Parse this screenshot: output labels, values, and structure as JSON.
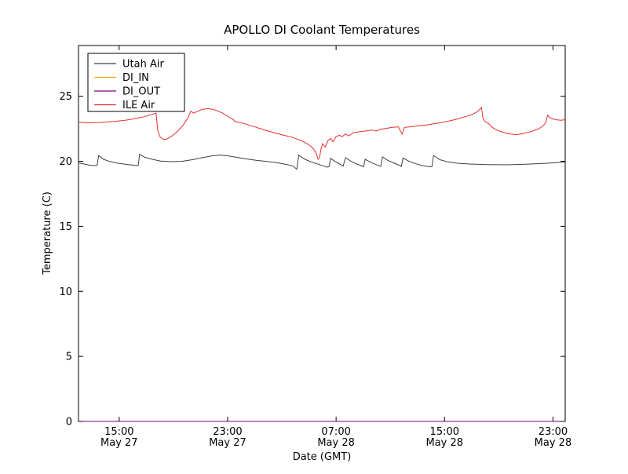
{
  "figure": {
    "title": "APOLLO DI Coolant Temperatures",
    "xlabel": "Date (GMT)",
    "ylabel": "Temperature (C)"
  },
  "chart_data": {
    "type": "line",
    "title": "APOLLO DI Coolant Temperatures",
    "xlabel": "Date (GMT)",
    "ylabel": "Temperature (C)",
    "grid": false,
    "legend_position": "upper left",
    "x_encoding": "hours since May 27 00:00 GMT",
    "xlim": [
      12.0,
      47.9
    ],
    "ylim": [
      0,
      28.9
    ],
    "yticks": [
      0,
      5,
      10,
      15,
      20,
      25
    ],
    "xticks": [
      {
        "t": 15,
        "time": "15:00",
        "date": "May 27"
      },
      {
        "t": 23,
        "time": "23:00",
        "date": "May 27"
      },
      {
        "t": 31,
        "time": "07:00",
        "date": "May 28"
      },
      {
        "t": 39,
        "time": "15:00",
        "date": "May 28"
      },
      {
        "t": 47,
        "time": "23:00",
        "date": "May 28"
      }
    ],
    "series": [
      {
        "name": "Utah Air",
        "color": "#3f3f3f",
        "points": [
          [
            12.0,
            19.88
          ],
          [
            12.35,
            19.8
          ],
          [
            12.75,
            19.72
          ],
          [
            13.15,
            19.66
          ],
          [
            13.38,
            19.7
          ],
          [
            13.49,
            20.45
          ],
          [
            13.85,
            20.15
          ],
          [
            14.3,
            19.98
          ],
          [
            14.9,
            19.85
          ],
          [
            15.45,
            19.77
          ],
          [
            16.05,
            19.7
          ],
          [
            16.4,
            19.66
          ],
          [
            16.51,
            20.55
          ],
          [
            16.9,
            20.3
          ],
          [
            17.45,
            20.15
          ],
          [
            18.05,
            20.02
          ],
          [
            18.85,
            19.97
          ],
          [
            19.65,
            20.0
          ],
          [
            20.4,
            20.12
          ],
          [
            21.15,
            20.28
          ],
          [
            21.85,
            20.42
          ],
          [
            22.4,
            20.48
          ],
          [
            22.9,
            20.44
          ],
          [
            23.6,
            20.32
          ],
          [
            24.3,
            20.2
          ],
          [
            25.1,
            20.08
          ],
          [
            25.9,
            19.99
          ],
          [
            26.7,
            19.88
          ],
          [
            27.4,
            19.75
          ],
          [
            27.85,
            19.62
          ],
          [
            28.1,
            19.38
          ],
          [
            28.25,
            20.47
          ],
          [
            28.7,
            20.15
          ],
          [
            29.15,
            19.95
          ],
          [
            29.6,
            19.8
          ],
          [
            30.05,
            19.65
          ],
          [
            30.35,
            19.55
          ],
          [
            30.48,
            19.58
          ],
          [
            30.6,
            20.22
          ],
          [
            30.95,
            19.97
          ],
          [
            31.3,
            19.77
          ],
          [
            31.52,
            19.62
          ],
          [
            31.7,
            20.28
          ],
          [
            32.1,
            20.0
          ],
          [
            32.5,
            19.8
          ],
          [
            32.85,
            19.67
          ],
          [
            33.03,
            19.58
          ],
          [
            33.14,
            20.15
          ],
          [
            33.55,
            19.92
          ],
          [
            33.95,
            19.75
          ],
          [
            34.3,
            19.6
          ],
          [
            34.42,
            20.33
          ],
          [
            34.85,
            20.05
          ],
          [
            35.3,
            19.85
          ],
          [
            35.7,
            19.68
          ],
          [
            35.81,
            19.6
          ],
          [
            35.93,
            20.25
          ],
          [
            36.35,
            20.02
          ],
          [
            36.8,
            19.83
          ],
          [
            37.4,
            19.66
          ],
          [
            37.95,
            19.57
          ],
          [
            38.08,
            19.6
          ],
          [
            38.19,
            20.45
          ],
          [
            38.65,
            20.12
          ],
          [
            39.25,
            19.95
          ],
          [
            39.95,
            19.85
          ],
          [
            40.85,
            19.79
          ],
          [
            42.1,
            19.75
          ],
          [
            43.6,
            19.73
          ],
          [
            45.0,
            19.77
          ],
          [
            46.3,
            19.84
          ],
          [
            47.25,
            19.9
          ],
          [
            47.9,
            19.94
          ]
        ]
      },
      {
        "name": "DI_IN",
        "color": "#ffa500",
        "points": [
          [
            12.0,
            0
          ],
          [
            47.9,
            0
          ]
        ]
      },
      {
        "name": "DI_OUT",
        "color": "#7d007d",
        "points": [
          [
            12.0,
            0
          ],
          [
            47.9,
            0
          ]
        ]
      },
      {
        "name": "ILE Air",
        "color": "#e62e2e",
        "points": [
          [
            12.0,
            23.0
          ],
          [
            12.7,
            22.95
          ],
          [
            13.4,
            22.97
          ],
          [
            14.05,
            23.02
          ],
          [
            14.75,
            23.08
          ],
          [
            15.45,
            23.15
          ],
          [
            16.15,
            23.27
          ],
          [
            16.75,
            23.4
          ],
          [
            17.3,
            23.56
          ],
          [
            17.6,
            23.66
          ],
          [
            17.72,
            23.7
          ],
          [
            17.84,
            22.4
          ],
          [
            18.0,
            21.9
          ],
          [
            18.25,
            21.67
          ],
          [
            18.55,
            21.72
          ],
          [
            18.9,
            21.95
          ],
          [
            19.3,
            22.3
          ],
          [
            19.7,
            22.75
          ],
          [
            20.05,
            23.3
          ],
          [
            20.28,
            23.85
          ],
          [
            20.5,
            23.7
          ],
          [
            20.8,
            23.85
          ],
          [
            21.15,
            24.0
          ],
          [
            21.55,
            24.05
          ],
          [
            21.9,
            24.0
          ],
          [
            22.25,
            23.88
          ],
          [
            22.6,
            23.72
          ],
          [
            22.95,
            23.5
          ],
          [
            23.25,
            23.3
          ],
          [
            23.45,
            23.18
          ],
          [
            23.55,
            23.05
          ],
          [
            23.8,
            23.0
          ],
          [
            24.3,
            22.88
          ],
          [
            24.85,
            22.7
          ],
          [
            25.45,
            22.5
          ],
          [
            26.0,
            22.32
          ],
          [
            26.6,
            22.15
          ],
          [
            27.15,
            22.0
          ],
          [
            27.75,
            21.85
          ],
          [
            28.2,
            21.68
          ],
          [
            28.6,
            21.5
          ],
          [
            28.95,
            21.3
          ],
          [
            29.25,
            21.05
          ],
          [
            29.5,
            20.7
          ],
          [
            29.67,
            20.15
          ],
          [
            29.78,
            20.3
          ],
          [
            29.9,
            21.0
          ],
          [
            30.0,
            21.35
          ],
          [
            30.2,
            21.1
          ],
          [
            30.4,
            21.6
          ],
          [
            30.6,
            21.75
          ],
          [
            30.77,
            21.5
          ],
          [
            31.0,
            21.9
          ],
          [
            31.25,
            22.0
          ],
          [
            31.45,
            21.9
          ],
          [
            31.7,
            22.1
          ],
          [
            31.93,
            21.95
          ],
          [
            32.3,
            22.2
          ],
          [
            32.75,
            22.28
          ],
          [
            33.2,
            22.33
          ],
          [
            33.65,
            22.4
          ],
          [
            33.95,
            22.32
          ],
          [
            34.25,
            22.45
          ],
          [
            34.65,
            22.52
          ],
          [
            35.1,
            22.6
          ],
          [
            35.6,
            22.65
          ],
          [
            35.75,
            22.3
          ],
          [
            35.87,
            22.1
          ],
          [
            36.05,
            22.6
          ],
          [
            36.45,
            22.65
          ],
          [
            37.05,
            22.72
          ],
          [
            37.6,
            22.78
          ],
          [
            38.2,
            22.88
          ],
          [
            38.8,
            22.98
          ],
          [
            39.35,
            23.1
          ],
          [
            39.95,
            23.25
          ],
          [
            40.5,
            23.42
          ],
          [
            41.05,
            23.6
          ],
          [
            41.4,
            23.8
          ],
          [
            41.6,
            24.0
          ],
          [
            41.72,
            24.12
          ],
          [
            41.84,
            23.3
          ],
          [
            42.0,
            23.05
          ],
          [
            42.25,
            22.9
          ],
          [
            42.5,
            22.62
          ],
          [
            42.77,
            22.45
          ],
          [
            43.1,
            22.3
          ],
          [
            43.5,
            22.17
          ],
          [
            43.95,
            22.08
          ],
          [
            44.35,
            22.05
          ],
          [
            44.75,
            22.12
          ],
          [
            45.15,
            22.22
          ],
          [
            45.55,
            22.35
          ],
          [
            45.95,
            22.5
          ],
          [
            46.25,
            22.7
          ],
          [
            46.48,
            23.0
          ],
          [
            46.6,
            23.55
          ],
          [
            46.77,
            23.35
          ],
          [
            47.0,
            23.25
          ],
          [
            47.3,
            23.18
          ],
          [
            47.6,
            23.15
          ],
          [
            47.9,
            23.2
          ]
        ]
      }
    ]
  }
}
